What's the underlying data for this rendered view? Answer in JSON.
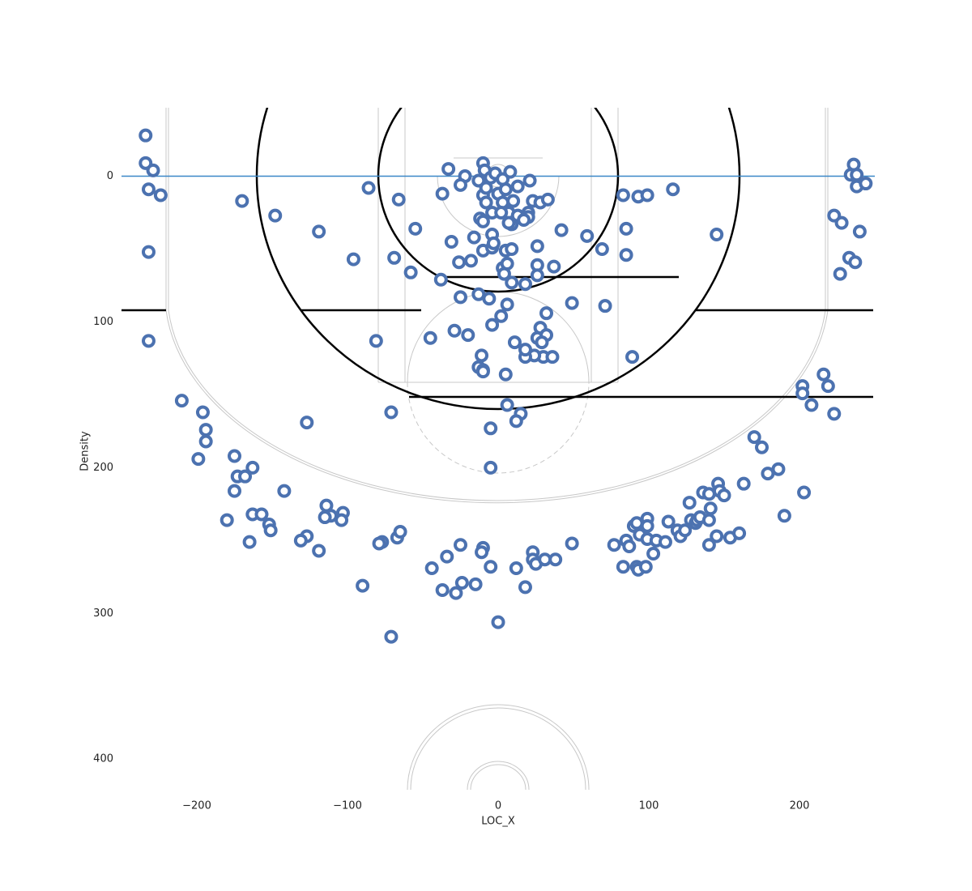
{
  "chart_data": {
    "type": "scatter",
    "xlabel": "LOC_X",
    "ylabel": "Density",
    "xlim": [
      -250,
      250
    ],
    "ylim": [
      -47,
      421
    ],
    "y_inverted": true,
    "xticks": [
      {
        "value": -200,
        "label": "−200"
      },
      {
        "value": -100,
        "label": "−100"
      },
      0,
      100,
      200
    ],
    "yticks": [
      0,
      100,
      200,
      300,
      400
    ],
    "grid": false,
    "hline": {
      "y": 0,
      "color": "#3a87c8"
    },
    "series": [
      {
        "color": "#4c72b0",
        "x": [
          -234,
          -234,
          -229,
          -232,
          -224,
          -232,
          -232,
          -170,
          -148,
          -119,
          -96,
          -86,
          -66,
          -69,
          -55,
          -58,
          -37,
          -33,
          -22,
          -25,
          -31,
          -26,
          -18,
          -16,
          -38,
          -25,
          -13,
          -10,
          -9,
          -13,
          -10,
          -8,
          -12,
          -10,
          -10,
          -4,
          -4,
          -3,
          3,
          5,
          9,
          6,
          4,
          9,
          18,
          26,
          26,
          26,
          37,
          42,
          -5,
          -2,
          3,
          8,
          13,
          10,
          7,
          13,
          20,
          23,
          28,
          33,
          21,
          9,
          20,
          0,
          3,
          5,
          -8,
          -4,
          2,
          17,
          7,
          83,
          93,
          99,
          116,
          85,
          59,
          69,
          85,
          145,
          223,
          228,
          240,
          236,
          234,
          238,
          238,
          244,
          233,
          237,
          227,
          49,
          71,
          89,
          32,
          28,
          26,
          32,
          29,
          30,
          36,
          24,
          18,
          18,
          11,
          6,
          2,
          -4,
          -6,
          -20,
          -29,
          -45,
          -81,
          -11,
          -13,
          -10,
          -10,
          5,
          6,
          15,
          12,
          -5,
          -5,
          -71,
          -127,
          -210,
          -196,
          -194,
          -194,
          -199,
          -175,
          -173,
          -175,
          -168,
          -163,
          -142,
          -114,
          -111,
          -115,
          -103,
          -104,
          -180,
          -163,
          -157,
          -152,
          -151,
          -165,
          -127,
          -131,
          -119,
          -77,
          -79,
          -67,
          -65,
          -90,
          -71,
          -44,
          -34,
          -25,
          -10,
          -11,
          -5,
          -24,
          -15,
          -28,
          -37,
          0,
          12,
          18,
          23,
          23,
          25,
          31,
          38,
          49,
          77,
          85,
          87,
          90,
          92,
          94,
          99,
          99,
          99,
          105,
          111,
          103,
          83,
          92,
          93,
          98,
          113,
          119,
          121,
          124,
          127,
          128,
          131,
          132,
          134,
          136,
          140,
          140,
          141,
          140,
          145,
          146,
          147,
          150,
          154,
          160,
          163,
          170,
          175,
          179,
          186,
          190,
          203,
          202,
          202,
          208,
          216,
          219,
          223
        ],
        "values": [
          -28,
          -9,
          -4,
          9,
          13,
          52,
          113,
          17,
          27,
          38,
          57,
          8,
          16,
          56,
          36,
          66,
          12,
          -5,
          0,
          6,
          45,
          59,
          58,
          42,
          71,
          83,
          81,
          -9,
          -4,
          3,
          13,
          18,
          29,
          31,
          51,
          49,
          40,
          46,
          63,
          51,
          50,
          60,
          67,
          73,
          74,
          48,
          61,
          68,
          62,
          37,
          1,
          -2,
          2,
          -3,
          7,
          17,
          25,
          27,
          25,
          17,
          18,
          16,
          3,
          33,
          28,
          12,
          18,
          9,
          8,
          25,
          25,
          30,
          32,
          13,
          14,
          13,
          9,
          36,
          41,
          50,
          54,
          40,
          27,
          32,
          38,
          -8,
          -1,
          -1,
          7,
          5,
          56,
          59,
          67,
          87,
          89,
          124,
          94,
          104,
          111,
          109,
          114,
          124,
          124,
          123,
          124,
          119,
          114,
          88,
          96,
          102,
          84,
          109,
          106,
          111,
          113,
          123,
          131,
          133,
          134,
          136,
          157,
          163,
          168,
          173,
          200,
          162,
          169,
          154,
          162,
          174,
          182,
          194,
          192,
          206,
          216,
          206,
          200,
          216,
          226,
          233,
          234,
          231,
          236,
          236,
          232,
          232,
          239,
          243,
          251,
          247,
          250,
          257,
          251,
          252,
          248,
          244,
          281,
          316,
          269,
          261,
          253,
          255,
          258,
          268,
          279,
          280,
          286,
          284,
          306,
          269,
          282,
          258,
          263,
          266,
          263,
          263,
          252,
          253,
          250,
          254,
          240,
          238,
          246,
          235,
          240,
          249,
          250,
          251,
          259,
          268,
          268,
          270,
          268,
          237,
          243,
          247,
          243,
          224,
          236,
          238,
          236,
          234,
          217,
          218,
          236,
          228,
          253,
          247,
          211,
          216,
          219,
          248,
          245,
          211,
          179,
          186,
          204,
          201,
          233,
          217,
          144,
          149,
          157,
          136,
          144,
          163
        ]
      }
    ]
  }
}
